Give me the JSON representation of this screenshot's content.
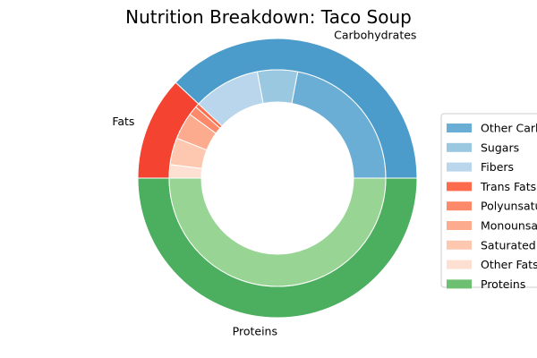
{
  "chart_data": {
    "type": "pie",
    "variant": "nested-donut",
    "title": "Nutrition Breakdown:  Taco Soup",
    "outer_ring": [
      {
        "name": "Carbohydrates",
        "value": 38,
        "color": "#4b9bcb"
      },
      {
        "name": "Fats",
        "value": 12,
        "color": "#f44431"
      },
      {
        "name": "Proteins",
        "value": 50,
        "color": "#4caf5f"
      }
    ],
    "inner_ring": [
      {
        "name": "Other Carbs",
        "value": 22,
        "color": "#6aaed6"
      },
      {
        "name": "Sugars",
        "value": 6,
        "color": "#9ac8e1"
      },
      {
        "name": "Fibers",
        "value": 10,
        "color": "#b9d6ec"
      },
      {
        "name": "Trans Fats",
        "value": 0.6,
        "color": "#fc6b4b"
      },
      {
        "name": "Polyunsaturated Fats",
        "value": 1.4,
        "color": "#fc8a6a"
      },
      {
        "name": "Monounsaturated Fats",
        "value": 4,
        "color": "#fcab8f"
      },
      {
        "name": "Saturated Fats",
        "value": 4,
        "color": "#fdc7b0"
      },
      {
        "name": "Other Fats",
        "value": 2,
        "color": "#fee0d2"
      },
      {
        "name": "Proteins",
        "value": 50,
        "color": "#98d594"
      }
    ],
    "legend": {
      "placement": "right",
      "entries": [
        {
          "label": "Other Carbs",
          "color": "#6aaed6"
        },
        {
          "label": "Sugars",
          "color": "#9ac8e1"
        },
        {
          "label": "Fibers",
          "color": "#b9d6ec"
        },
        {
          "label": "Trans Fats",
          "color": "#fc6b4b"
        },
        {
          "label": "Polyunsaturated Fats",
          "color": "#fc8a6a"
        },
        {
          "label": "Monounsaturated Fats",
          "color": "#fcab8f"
        },
        {
          "label": "Saturated Fats",
          "color": "#fdc7b0"
        },
        {
          "label": "Other Fats",
          "color": "#fee0d2"
        },
        {
          "label": "Proteins",
          "color": "#6dbf71"
        }
      ]
    }
  }
}
